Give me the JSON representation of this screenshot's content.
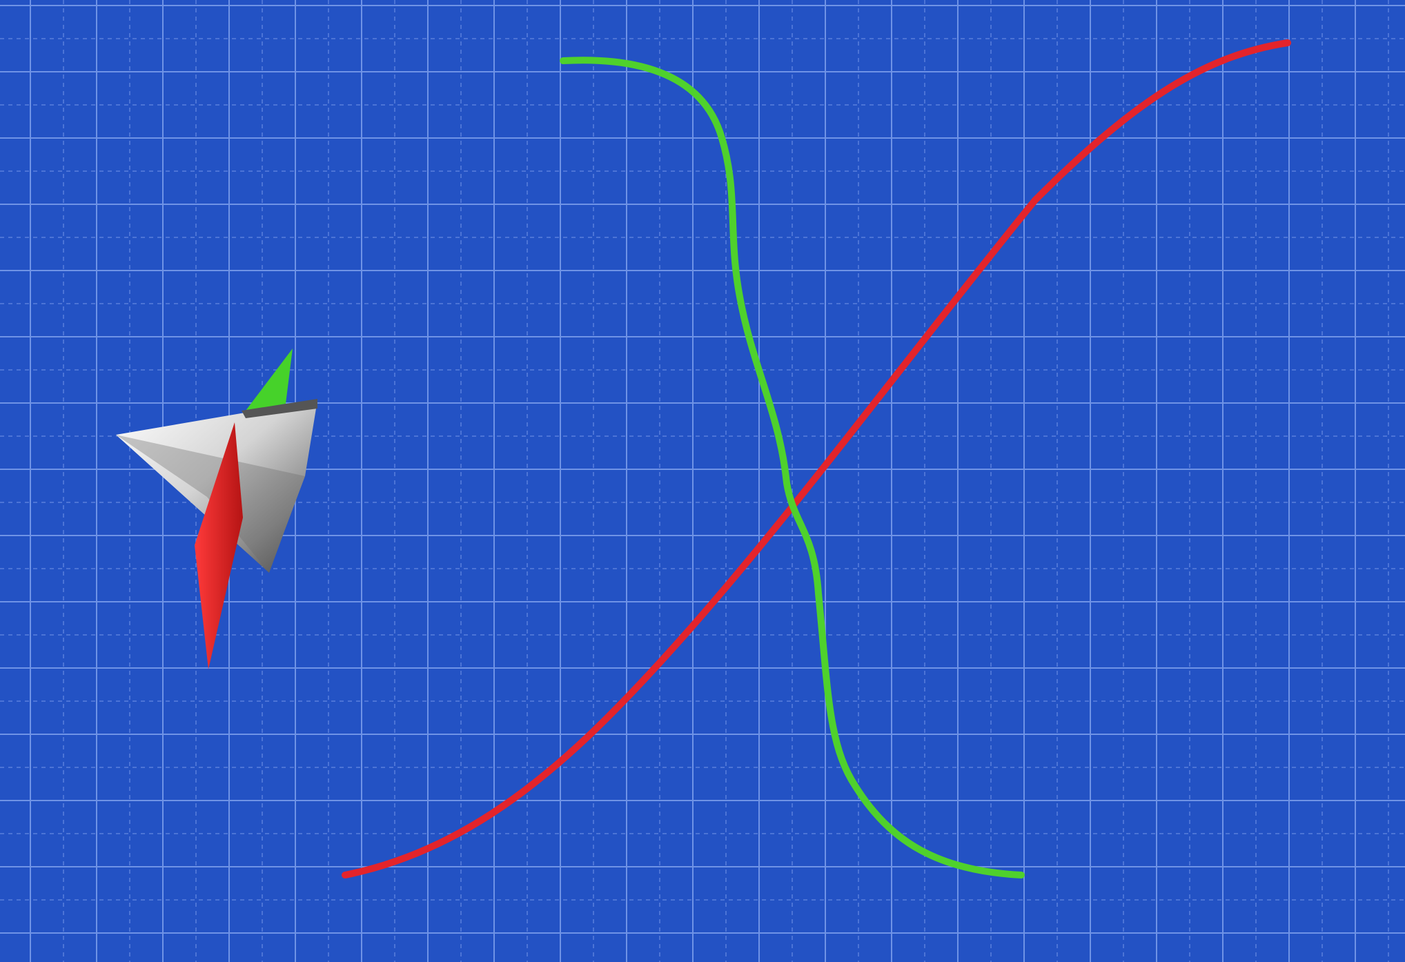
{
  "scene": {
    "background_color": "#2352c4",
    "grid": {
      "major_line_color": "#6f93e6",
      "minor_line_color": "#5a80dc",
      "minor_dashed": true
    },
    "curves": [
      {
        "name": "red-curve",
        "color": "#e3242b"
      },
      {
        "name": "green-curve",
        "color": "#4fd12c"
      }
    ],
    "gizmo": {
      "cone_colors": [
        "#f4f4f4",
        "#bdbdbd",
        "#555555"
      ],
      "red_arrow_color": "#e01f1f",
      "green_arrow_color": "#46d22a"
    }
  }
}
